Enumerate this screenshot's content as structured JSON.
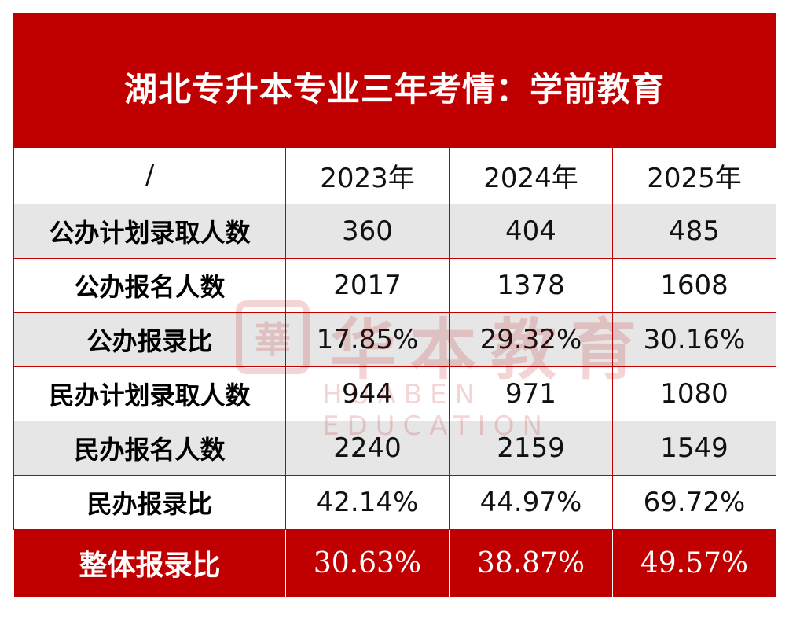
{
  "title": "湖北专升本专业三年考情：学前教育",
  "header": [
    "/",
    "2023年",
    "2024年",
    "2025年"
  ],
  "rows": [
    {
      "label": "公办计划录取人数",
      "values": [
        "360",
        "404",
        "485"
      ]
    },
    {
      "label": "公办报名人数",
      "values": [
        "2017",
        "1378",
        "1608"
      ]
    },
    {
      "label": "公办报录比",
      "values": [
        "17.85%",
        "29.32%",
        "30.16%"
      ]
    },
    {
      "label": "民办计划录取人数",
      "values": [
        "944",
        "971",
        "1080"
      ]
    },
    {
      "label": "民办报名人数",
      "values": [
        "2240",
        "2159",
        "1549"
      ]
    },
    {
      "label": "民办报录比",
      "values": [
        "42.14%",
        "44.97%",
        "69.72%"
      ]
    }
  ],
  "total": {
    "label": "整体报录比",
    "values": [
      "30.63%",
      "38.87%",
      "49.57%"
    ]
  },
  "watermark": {
    "logo_glyph": "華",
    "cn": "华本教育",
    "en": "HUABEN EDUCATION"
  },
  "colors": {
    "accent": "#c00000",
    "shade": "#e6e6e6"
  }
}
